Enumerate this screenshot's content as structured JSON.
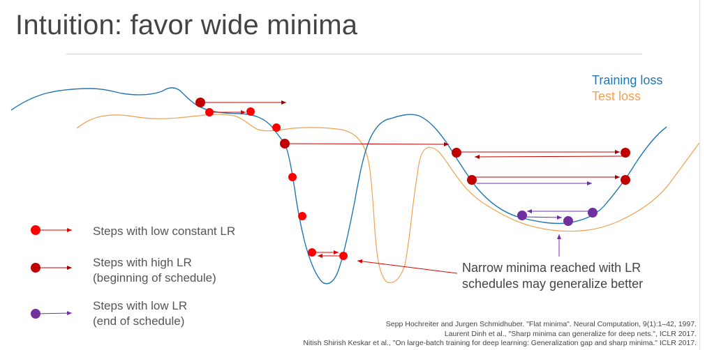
{
  "title": "Intuition: favor wide minima",
  "legend": {
    "training_loss": "Training loss",
    "test_loss": "Test loss"
  },
  "key": {
    "low_constant": "Steps with low constant LR",
    "high_lr_line1": "Steps with high LR",
    "high_lr_line2": "(beginning of schedule)",
    "low_lr_line1": "Steps with low LR",
    "low_lr_line2": "(end of schedule)"
  },
  "annotation": {
    "line1": "Narrow minima reached with LR",
    "line2": "schedules may generalize better"
  },
  "references": [
    "Sepp Hochreiter and Jurgen Schmidhuber. \"Flat minima\". Neural Computation, 9(1):1–42, 1997.",
    "Laurent Dinh et al., \"Sharp minima can generalize for deep nets.\", ICLR 2017.",
    "Nitish Shirish Keskar et al., \"On large-batch training for deep learning: Generalization gap and sharp minima.\" ICLR 2017."
  ],
  "colors": {
    "training": "#1f77b4",
    "test": "#f0a050",
    "low_constant": "#ff0000",
    "high_lr": "#c00000",
    "low_lr": "#7030a0"
  }
}
